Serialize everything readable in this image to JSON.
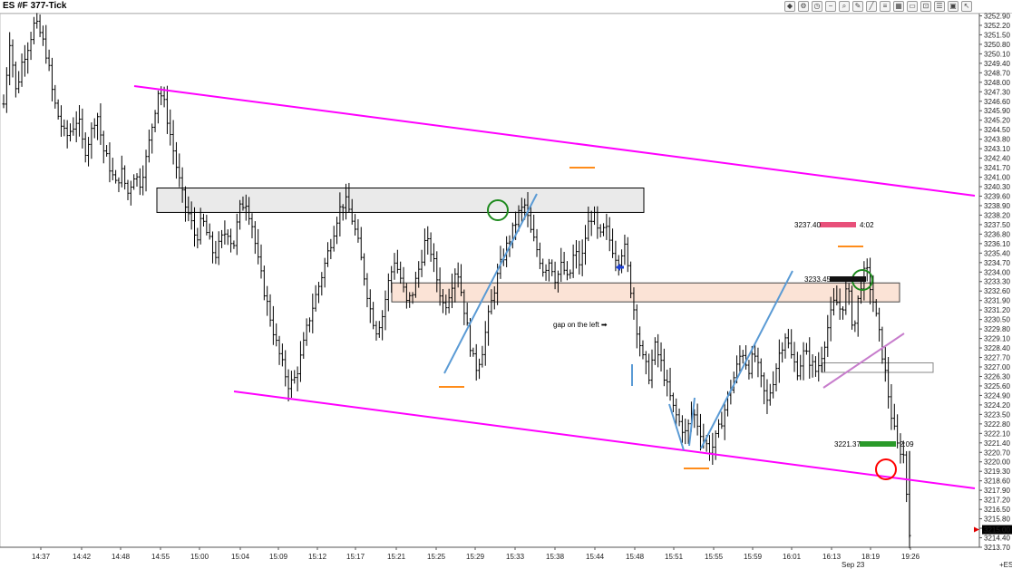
{
  "window": {
    "title": "ES #F 377-Tick"
  },
  "toolbar": {
    "icons": [
      "indicator-icon",
      "strategy-icon",
      "clock-icon",
      "minus-icon",
      "magnify-icon",
      "pencil-icon",
      "ray-icon",
      "channel-icon",
      "grid-icon",
      "rectangle-icon",
      "lock-icon",
      "properties-icon",
      "data-box-icon",
      "cursor-icon"
    ]
  },
  "colors": {
    "channel": "#ff00ff",
    "trendline": "#5b9bd5",
    "box_resistance": "#e6e6e6",
    "box_support": "#fbe0d2",
    "marker": "#ff8c1a",
    "ask_label": "#e8507a",
    "bid_label": "#2a9a2a",
    "circle_green": "#1e8a1e",
    "circle_red": "#ff0000"
  },
  "chart_data": {
    "type": "ohlc",
    "instrument": "ES #F",
    "bar_type": "377-Tick",
    "y_axis": {
      "range": [
        3213.7,
        3253.0
      ],
      "tick_labels": [
        "3252.90",
        "3252.20",
        "3251.50",
        "3250.80",
        "3250.10",
        "3249.40",
        "3248.70",
        "3248.00",
        "3247.30",
        "3246.60",
        "3245.90",
        "3245.20",
        "3244.50",
        "3243.80",
        "3243.10",
        "3242.40",
        "3241.70",
        "3241.00",
        "3240.30",
        "3239.60",
        "3238.90",
        "3238.20",
        "3237.50",
        "3236.80",
        "3236.10",
        "3235.40",
        "3234.70",
        "3234.00",
        "3233.30",
        "3232.60",
        "3231.90",
        "3231.20",
        "3230.50",
        "3229.80",
        "3229.10",
        "3228.40",
        "3227.70",
        "3227.00",
        "3226.30",
        "3225.60",
        "3224.90",
        "3224.20",
        "3223.50",
        "3222.80",
        "3222.10",
        "3221.40",
        "3220.70",
        "3220.00",
        "3219.30",
        "3218.60",
        "3217.90",
        "3217.20",
        "3216.50",
        "3215.80",
        "3215.10",
        "3214.40",
        "3213.70"
      ]
    },
    "x_axis": {
      "tick_labels": [
        "14:37",
        "14:42",
        "14:48",
        "14:55",
        "15:00",
        "15:04",
        "15:09",
        "15:12",
        "15:17",
        "15:21",
        "15:25",
        "15:29",
        "15:33",
        "15:38",
        "15:44",
        "15:48",
        "15:51",
        "15:55",
        "15:59",
        "16:01",
        "16:13",
        "18:19",
        "19:26"
      ],
      "date_label": "Sep 23"
    },
    "last_price": "3215.00",
    "price_path": [
      3246.4,
      3251.2,
      3247.2,
      3249.6,
      3250.8,
      3252.4,
      3251.5,
      3249.9,
      3246.8,
      3245.2,
      3243.9,
      3244.6,
      3245.4,
      3242.8,
      3244.1,
      3245.9,
      3243.1,
      3241.9,
      3240.4,
      3241.4,
      3239.8,
      3241.2,
      3240.6,
      3242.4,
      3245.0,
      3247.6,
      3246.2,
      3243.8,
      3241.4,
      3239.2,
      3238.0,
      3236.4,
      3237.9,
      3236.5,
      3235.1,
      3236.3,
      3237.2,
      3235.8,
      3238.6,
      3239.3,
      3237.6,
      3234.8,
      3232.6,
      3230.6,
      3228.6,
      3227.0,
      3225.6,
      3226.2,
      3227.9,
      3230.1,
      3231.8,
      3233.3,
      3235.0,
      3236.7,
      3238.5,
      3239.3,
      3238.2,
      3236.4,
      3234.0,
      3231.4,
      3229.7,
      3230.7,
      3233.2,
      3234.9,
      3233.5,
      3231.6,
      3232.6,
      3234.4,
      3236.4,
      3235.4,
      3233.1,
      3231.3,
      3232.8,
      3234.5,
      3231.9,
      3229.1,
      3226.8,
      3227.9,
      3230.4,
      3232.6,
      3234.4,
      3235.8,
      3237.0,
      3238.3,
      3238.9,
      3236.9,
      3235.6,
      3234.1,
      3234.9,
      3233.4,
      3234.6,
      3233.2,
      3235.6,
      3234.4,
      3237.3,
      3238.4,
      3236.4,
      3237.3,
      3235.9,
      3234.8,
      3236.0,
      3233.0,
      3230.0,
      3227.6,
      3226.4,
      3228.5,
      3227.2,
      3225.4,
      3223.8,
      3222.8,
      3222.0,
      3223.8,
      3222.6,
      3221.4,
      3220.8,
      3222.0,
      3223.5,
      3225.2,
      3226.7,
      3228.3,
      3226.8,
      3228.0,
      3226.1,
      3224.3,
      3226.0,
      3228.0,
      3229.4,
      3227.7,
      3226.7,
      3228.1,
      3227.4,
      3226.6,
      3228.2,
      3230.3,
      3232.0,
      3231.1,
      3233.0,
      3229.5,
      3232.9,
      3234.3,
      3232.2,
      3229.7,
      3226.8,
      3223.6,
      3221.2,
      3220.6,
      3215.0
    ]
  },
  "annotations": {
    "gap_text": "gap on the left",
    "gap_arrow": "➡",
    "ask_price": "3237.40",
    "ask_timer": "4:02",
    "bid_price": "3221.37",
    "bid_timer": "2:09",
    "current_level": "3233.45",
    "axis_symbol": "+ES",
    "levels": {
      "resistance_box": [
        3238.4,
        3240.2
      ],
      "support_box": [
        3231.8,
        3233.2
      ],
      "small_box": [
        3226.6,
        3227.3
      ],
      "upper_channel": [
        [
          3248.0,
          3239.9
        ]
      ],
      "lower_channel": [
        [
          3225.0,
          3218.0
        ]
      ]
    }
  }
}
